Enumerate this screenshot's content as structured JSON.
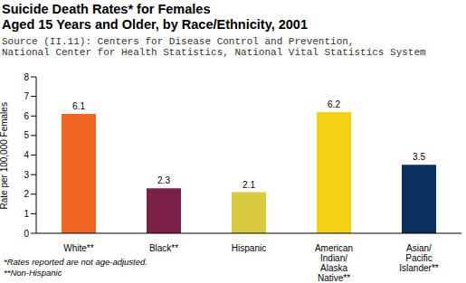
{
  "chart_data": {
    "type": "bar",
    "title": "Suicide Death Rates* for Females",
    "subtitle": "Aged 15 Years and Older, by Race/Ethnicity, 2001",
    "source": [
      "Source (II.11): Centers for Disease Control and Prevention,",
      "National Center for Health Statistics, National Vital Statistics System"
    ],
    "categories": [
      "White**",
      "Black**",
      "Hispanic",
      "American Indian/ Alaska Native**",
      "Asian/ Pacific Islander**"
    ],
    "values": [
      6.1,
      2.3,
      2.1,
      6.2,
      3.5
    ],
    "colors": [
      "#f26522",
      "#7b2148",
      "#d9c93f",
      "#f5d116",
      "#0a3161"
    ],
    "y_label": "Rate per 100,000 Females",
    "ylim": [
      0,
      8
    ],
    "yticks": [
      0,
      1,
      2,
      3,
      4,
      5,
      6,
      7,
      8
    ],
    "grid": false,
    "data_labels": true,
    "notes": [
      "*Rates reported are not age-adjusted.",
      "**Non-Hispanic"
    ]
  }
}
